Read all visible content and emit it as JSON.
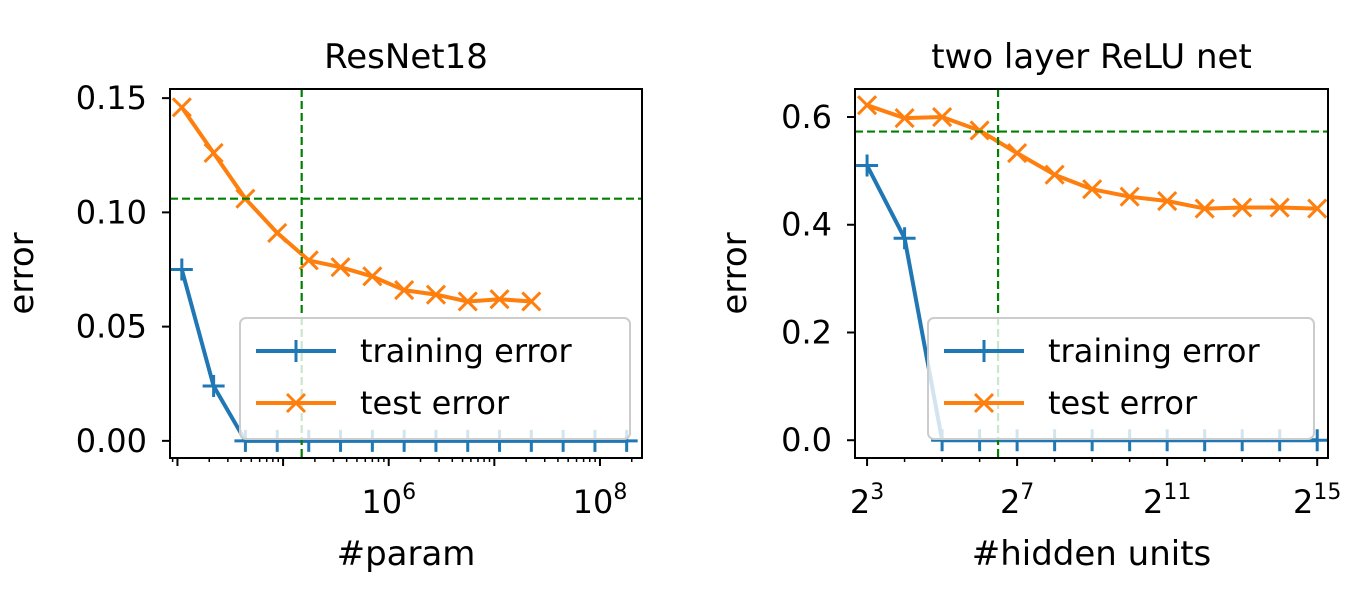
{
  "chart_data": [
    {
      "type": "line",
      "title": "ResNet18",
      "xlabel": "#param",
      "ylabel": "error",
      "xscale": "log",
      "xlim": [
        8500.0,
        250000000.0
      ],
      "ylim": [
        -0.0075,
        0.154
      ],
      "yticks": [
        0.0,
        0.05,
        0.1,
        0.15
      ],
      "ytick_labels": [
        "0.00",
        "0.05",
        "0.10",
        "0.15"
      ],
      "xticks": [
        1000000,
        100000000
      ],
      "xtick_base": [
        "10",
        "10"
      ],
      "xtick_exp": [
        "6",
        "8"
      ],
      "x": [
        11000,
        22000,
        44000,
        88000,
        175000,
        350000,
        700000,
        1400000,
        2800000,
        5600000,
        11200000,
        22400000,
        44800000,
        89600000,
        179000000
      ],
      "series": [
        {
          "name": "training error",
          "color": "#1f77b4",
          "marker": "plus",
          "values": [
            0.075,
            0.024,
            0.0,
            0.0,
            0.0,
            0.0,
            0.0,
            0.0,
            0.0,
            0.0,
            0.0,
            0.0,
            0.0,
            0.0,
            0.0
          ]
        },
        {
          "name": "test error",
          "color": "#ff7f0e",
          "marker": "x",
          "values": [
            0.146,
            0.126,
            0.106,
            0.091,
            0.079,
            0.076,
            0.072,
            0.066,
            0.064,
            0.061,
            0.062,
            0.061,
            null,
            null,
            null
          ]
        }
      ],
      "reference_lines": {
        "color": "#008000",
        "x": 150000,
        "y": 0.106
      },
      "legend": "lower-right",
      "grid": false
    },
    {
      "type": "line",
      "title": "two layer ReLU net",
      "xlabel": "#hidden units",
      "ylabel": "error",
      "xscale": "log2",
      "xlim": [
        6.4,
        40000
      ],
      "ylim": [
        -0.033,
        0.652
      ],
      "yticks": [
        0.0,
        0.2,
        0.4,
        0.6
      ],
      "ytick_labels": [
        "0.0",
        "0.2",
        "0.4",
        "0.6"
      ],
      "xticks": [
        8,
        128,
        2048,
        32768
      ],
      "xtick_base": [
        "2",
        "2",
        "2",
        "2"
      ],
      "xtick_exp": [
        "3",
        "7",
        "11",
        "15"
      ],
      "x": [
        8,
        16,
        32,
        64,
        128,
        256,
        512,
        1024,
        2048,
        4096,
        8192,
        16384,
        32768
      ],
      "series": [
        {
          "name": "training error",
          "color": "#1f77b4",
          "marker": "plus",
          "values": [
            0.51,
            0.375,
            0.0,
            0.0,
            0.0,
            0.0,
            0.0,
            0.0,
            0.0,
            0.0,
            0.0,
            0.0,
            0.0
          ]
        },
        {
          "name": "test error",
          "color": "#ff7f0e",
          "marker": "x",
          "values": [
            0.622,
            0.598,
            0.6,
            0.575,
            0.533,
            0.493,
            0.466,
            0.452,
            0.444,
            0.43,
            0.432,
            0.432,
            0.43
          ]
        }
      ],
      "reference_lines": {
        "color": "#008000",
        "x": 90,
        "y": 0.573
      },
      "legend": "lower-right",
      "grid": false
    }
  ]
}
